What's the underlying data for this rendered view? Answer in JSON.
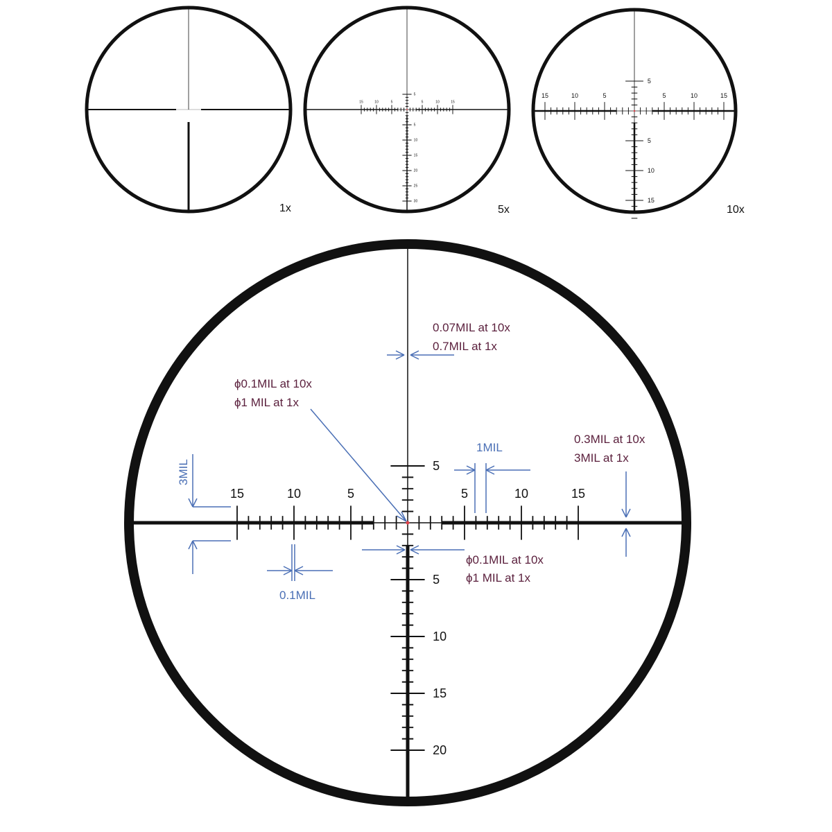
{
  "small_views": [
    {
      "label": "1x"
    },
    {
      "label": "5x",
      "h_labels": [
        "15",
        "10",
        "5",
        "5",
        "10",
        "15"
      ],
      "v_labels": [
        "5",
        "5",
        "10",
        "15",
        "20",
        "25",
        "30"
      ]
    },
    {
      "label": "10x",
      "h_labels": [
        "15",
        "10",
        "5",
        "5",
        "10",
        "15"
      ],
      "v_labels": [
        "5",
        "5",
        "10",
        "15"
      ]
    }
  ],
  "main": {
    "h_labels": [
      "15",
      "10",
      "5",
      "5",
      "10",
      "15"
    ],
    "v_labels": [
      "5",
      "5",
      "10",
      "15",
      "20"
    ]
  },
  "annotations": {
    "line_width": [
      "0.07MIL at 10x",
      "0.7MIL at 1x"
    ],
    "center_dot": [
      "ϕ0.1MIL  at 10x",
      "ϕ1 MIL at 1x"
    ],
    "tick_spacing": "1MIL",
    "thick_bar": [
      "0.3MIL at 10x",
      "3MIL at 1x"
    ],
    "tick_height": "3MIL",
    "tick_width": "0.1MIL",
    "thick_width": [
      "ϕ0.1MIL  at 10x",
      "ϕ1 MIL at 1x"
    ]
  },
  "colors": {
    "reticle": "#111111",
    "note_text": "#5a1f3c",
    "dimension": "#4a6fb5",
    "center_dot": "#e0404a"
  }
}
